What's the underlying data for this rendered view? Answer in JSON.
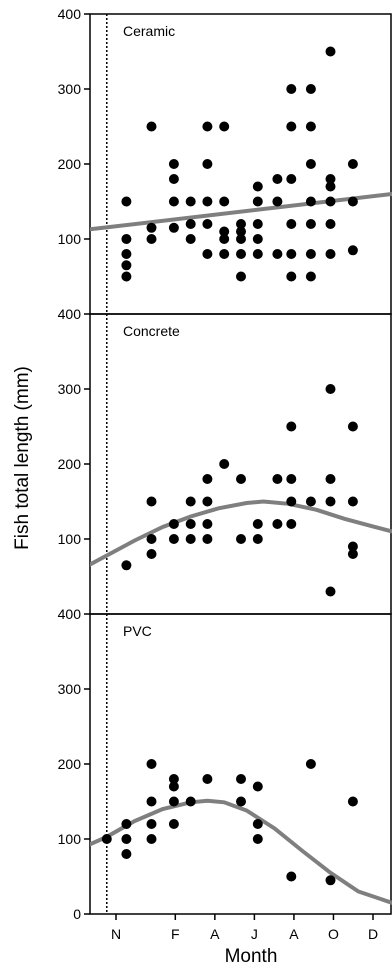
{
  "figure": {
    "ylabel": "Fish total length (mm)",
    "xlabel": "Month",
    "x_ticks": [
      "N",
      "F",
      "A",
      "J",
      "A",
      "O",
      "D"
    ],
    "y_ticks_top": [
      "100",
      "200",
      "300",
      "400"
    ],
    "y_ticks_bottom": [
      "0",
      "100",
      "200",
      "300",
      "400"
    ]
  },
  "colors": {
    "points": "#000000",
    "trend": "#7f7f7f",
    "frame": "#000000"
  },
  "chart_data": [
    {
      "type": "scatter",
      "title": "Ceramic",
      "xlabel": "Month",
      "ylabel": "Fish total length (mm)",
      "x_unit": "months since Nov",
      "xlim": [
        -0.6,
        10.2
      ],
      "ylim": [
        0,
        400
      ],
      "vline_x": 0,
      "points": [
        [
          0.7,
          150
        ],
        [
          0.7,
          100
        ],
        [
          0.7,
          80
        ],
        [
          0.7,
          65
        ],
        [
          0.7,
          50
        ],
        [
          1.6,
          250
        ],
        [
          1.6,
          115
        ],
        [
          1.6,
          100
        ],
        [
          2.4,
          200
        ],
        [
          2.4,
          180
        ],
        [
          2.4,
          150
        ],
        [
          2.4,
          115
        ],
        [
          3.0,
          150
        ],
        [
          3.0,
          120
        ],
        [
          3.0,
          100
        ],
        [
          3.6,
          250
        ],
        [
          3.6,
          200
        ],
        [
          3.6,
          150
        ],
        [
          3.6,
          120
        ],
        [
          3.6,
          80
        ],
        [
          4.2,
          250
        ],
        [
          4.2,
          150
        ],
        [
          4.2,
          110
        ],
        [
          4.2,
          100
        ],
        [
          4.2,
          80
        ],
        [
          4.8,
          120
        ],
        [
          4.8,
          110
        ],
        [
          4.8,
          100
        ],
        [
          4.8,
          80
        ],
        [
          4.8,
          50
        ],
        [
          5.4,
          170
        ],
        [
          5.4,
          150
        ],
        [
          5.4,
          120
        ],
        [
          5.4,
          100
        ],
        [
          5.4,
          80
        ],
        [
          6.1,
          180
        ],
        [
          6.1,
          150
        ],
        [
          6.1,
          80
        ],
        [
          6.6,
          300
        ],
        [
          6.6,
          250
        ],
        [
          6.6,
          180
        ],
        [
          6.6,
          120
        ],
        [
          6.6,
          80
        ],
        [
          6.6,
          50
        ],
        [
          7.3,
          300
        ],
        [
          7.3,
          250
        ],
        [
          7.3,
          200
        ],
        [
          7.3,
          150
        ],
        [
          7.3,
          120
        ],
        [
          7.3,
          80
        ],
        [
          7.3,
          50
        ],
        [
          8.0,
          350
        ],
        [
          8.0,
          180
        ],
        [
          8.0,
          170
        ],
        [
          8.0,
          150
        ],
        [
          8.0,
          120
        ],
        [
          8.0,
          80
        ],
        [
          8.8,
          200
        ],
        [
          8.8,
          150
        ],
        [
          8.8,
          85
        ]
      ],
      "trend": [
        [
          -0.6,
          113
        ],
        [
          10.2,
          160
        ]
      ]
    },
    {
      "type": "scatter",
      "title": "Concrete",
      "xlabel": "Month",
      "ylabel": "Fish total length (mm)",
      "x_unit": "months since Nov",
      "xlim": [
        -0.6,
        10.2
      ],
      "ylim": [
        0,
        400
      ],
      "vline_x": 0,
      "points": [
        [
          0.7,
          65
        ],
        [
          1.6,
          150
        ],
        [
          1.6,
          100
        ],
        [
          1.6,
          80
        ],
        [
          2.4,
          120
        ],
        [
          2.4,
          100
        ],
        [
          3.0,
          150
        ],
        [
          3.0,
          120
        ],
        [
          3.0,
          100
        ],
        [
          3.6,
          180
        ],
        [
          3.6,
          150
        ],
        [
          3.6,
          120
        ],
        [
          3.6,
          100
        ],
        [
          4.2,
          200
        ],
        [
          4.8,
          180
        ],
        [
          4.8,
          100
        ],
        [
          5.4,
          120
        ],
        [
          5.4,
          100
        ],
        [
          6.1,
          180
        ],
        [
          6.1,
          120
        ],
        [
          6.6,
          250
        ],
        [
          6.6,
          180
        ],
        [
          6.6,
          150
        ],
        [
          6.6,
          120
        ],
        [
          7.3,
          150
        ],
        [
          8.0,
          300
        ],
        [
          8.0,
          180
        ],
        [
          8.0,
          150
        ],
        [
          8.0,
          30
        ],
        [
          8.8,
          250
        ],
        [
          8.8,
          150
        ],
        [
          8.8,
          90
        ],
        [
          8.8,
          80
        ]
      ],
      "trend": [
        [
          -0.6,
          66
        ],
        [
          0,
          78
        ],
        [
          1,
          98
        ],
        [
          2,
          116
        ],
        [
          3,
          130
        ],
        [
          4,
          141
        ],
        [
          5,
          148
        ],
        [
          5.6,
          150
        ],
        [
          6.5,
          147
        ],
        [
          7.5,
          139
        ],
        [
          8.5,
          127
        ],
        [
          9.5,
          117
        ],
        [
          10.2,
          110
        ]
      ]
    },
    {
      "type": "scatter",
      "title": "PVC",
      "xlabel": "Month",
      "ylabel": "Fish total length (mm)",
      "x_unit": "months since Nov",
      "xlim": [
        -0.6,
        10.2
      ],
      "ylim": [
        0,
        400
      ],
      "vline_x": 0,
      "points": [
        [
          0,
          100
        ],
        [
          0.7,
          120
        ],
        [
          0.7,
          100
        ],
        [
          0.7,
          80
        ],
        [
          1.6,
          200
        ],
        [
          1.6,
          150
        ],
        [
          1.6,
          120
        ],
        [
          1.6,
          100
        ],
        [
          2.4,
          180
        ],
        [
          2.4,
          170
        ],
        [
          2.4,
          150
        ],
        [
          2.4,
          120
        ],
        [
          3.0,
          150
        ],
        [
          3.6,
          180
        ],
        [
          4.8,
          180
        ],
        [
          4.8,
          150
        ],
        [
          5.4,
          170
        ],
        [
          5.4,
          120
        ],
        [
          5.4,
          100
        ],
        [
          6.6,
          50
        ],
        [
          7.3,
          200
        ],
        [
          8.0,
          45
        ],
        [
          8.8,
          150
        ]
      ],
      "trend": [
        [
          -0.6,
          93
        ],
        [
          0,
          103
        ],
        [
          1,
          124
        ],
        [
          2,
          140
        ],
        [
          3,
          149
        ],
        [
          3.6,
          151
        ],
        [
          4.2,
          149
        ],
        [
          5,
          138
        ],
        [
          6,
          114
        ],
        [
          7,
          84
        ],
        [
          8,
          55
        ],
        [
          9,
          30
        ],
        [
          10.2,
          15
        ]
      ]
    }
  ]
}
